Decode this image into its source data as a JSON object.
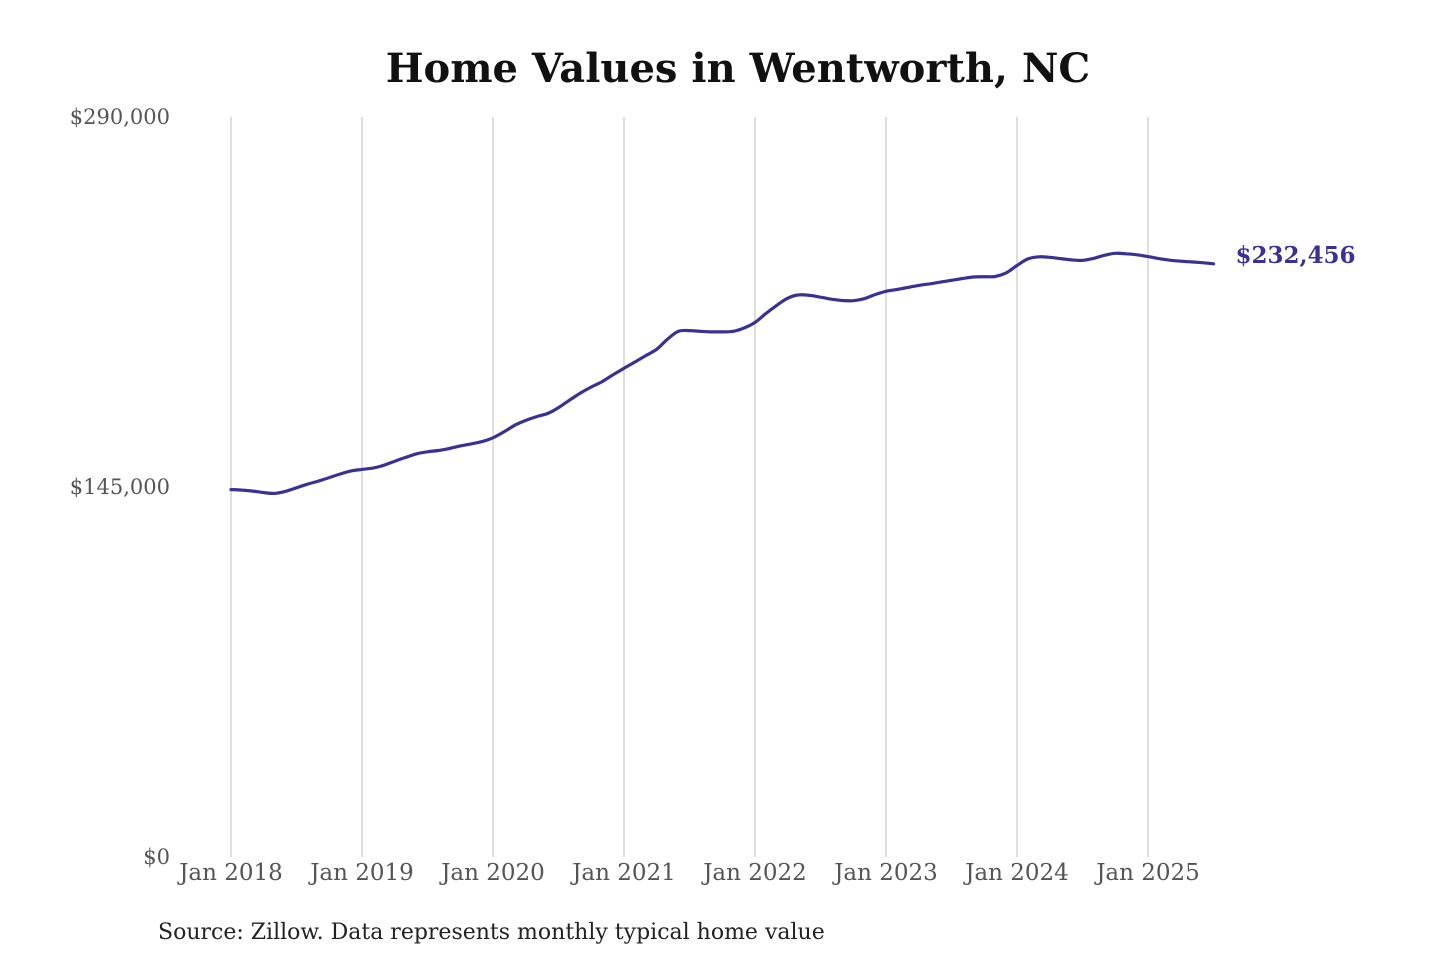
{
  "chart_data": {
    "type": "line",
    "title": "Home Values in Wentworth, NC",
    "source": "Source: Zillow. Data represents monthly typical home value",
    "ylim": [
      0,
      290000
    ],
    "yticks": [
      {
        "value": 0,
        "label": "$0"
      },
      {
        "value": 145000,
        "label": "$145,000"
      },
      {
        "value": 290000,
        "label": "$290,000"
      }
    ],
    "xticks": [
      {
        "value": "2018-01",
        "label": "Jan 2018"
      },
      {
        "value": "2019-01",
        "label": "Jan 2019"
      },
      {
        "value": "2020-01",
        "label": "Jan 2020"
      },
      {
        "value": "2021-01",
        "label": "Jan 2021"
      },
      {
        "value": "2022-01",
        "label": "Jan 2022"
      },
      {
        "value": "2023-01",
        "label": "Jan 2023"
      },
      {
        "value": "2024-01",
        "label": "Jan 2024"
      },
      {
        "value": "2025-01",
        "label": "Jan 2025"
      }
    ],
    "grid": "vertical",
    "line_color": "#3a3194",
    "end_label": "$232,456",
    "series": [
      {
        "points": [
          [
            "2018-01",
            144000
          ],
          [
            "2018-02",
            143800
          ],
          [
            "2018-03",
            143400
          ],
          [
            "2018-04",
            142800
          ],
          [
            "2018-05",
            142500
          ],
          [
            "2018-06",
            143300
          ],
          [
            "2018-07",
            144700
          ],
          [
            "2018-08",
            146100
          ],
          [
            "2018-09",
            147300
          ],
          [
            "2018-10",
            148700
          ],
          [
            "2018-11",
            150100
          ],
          [
            "2018-12",
            151300
          ],
          [
            "2019-01",
            151900
          ],
          [
            "2019-02",
            152400
          ],
          [
            "2019-03",
            153500
          ],
          [
            "2019-04",
            155100
          ],
          [
            "2019-05",
            156600
          ],
          [
            "2019-06",
            158000
          ],
          [
            "2019-07",
            158800
          ],
          [
            "2019-08",
            159300
          ],
          [
            "2019-09",
            160100
          ],
          [
            "2019-10",
            161100
          ],
          [
            "2019-11",
            161900
          ],
          [
            "2019-12",
            162800
          ],
          [
            "2020-01",
            164300
          ],
          [
            "2020-02",
            166600
          ],
          [
            "2020-03",
            169200
          ],
          [
            "2020-04",
            171100
          ],
          [
            "2020-05",
            172600
          ],
          [
            "2020-06",
            173800
          ],
          [
            "2020-07",
            176100
          ],
          [
            "2020-08",
            179000
          ],
          [
            "2020-09",
            181800
          ],
          [
            "2020-10",
            184200
          ],
          [
            "2020-11",
            186300
          ],
          [
            "2020-12",
            189000
          ],
          [
            "2021-01",
            191500
          ],
          [
            "2021-02",
            194000
          ],
          [
            "2021-03",
            196500
          ],
          [
            "2021-04",
            199000
          ],
          [
            "2021-05",
            203000
          ],
          [
            "2021-06",
            206000
          ],
          [
            "2021-07",
            206300
          ],
          [
            "2021-08",
            206000
          ],
          [
            "2021-09",
            205800
          ],
          [
            "2021-10",
            205800
          ],
          [
            "2021-11",
            206000
          ],
          [
            "2021-12",
            207300
          ],
          [
            "2022-01",
            209500
          ],
          [
            "2022-02",
            213000
          ],
          [
            "2022-03",
            216200
          ],
          [
            "2022-04",
            219000
          ],
          [
            "2022-05",
            220300
          ],
          [
            "2022-06",
            220100
          ],
          [
            "2022-07",
            219400
          ],
          [
            "2022-08",
            218600
          ],
          [
            "2022-09",
            218100
          ],
          [
            "2022-10",
            218000
          ],
          [
            "2022-11",
            218800
          ],
          [
            "2022-12",
            220400
          ],
          [
            "2023-01",
            221700
          ],
          [
            "2023-02",
            222400
          ],
          [
            "2023-03",
            223200
          ],
          [
            "2023-04",
            224000
          ],
          [
            "2023-05",
            224600
          ],
          [
            "2023-06",
            225300
          ],
          [
            "2023-07",
            226000
          ],
          [
            "2023-08",
            226700
          ],
          [
            "2023-09",
            227300
          ],
          [
            "2023-10",
            227400
          ],
          [
            "2023-11",
            227500
          ],
          [
            "2023-12",
            228900
          ],
          [
            "2024-01",
            231800
          ],
          [
            "2024-02",
            234400
          ],
          [
            "2024-03",
            235200
          ],
          [
            "2024-04",
            235000
          ],
          [
            "2024-05",
            234500
          ],
          [
            "2024-06",
            234000
          ],
          [
            "2024-07",
            233800
          ],
          [
            "2024-08",
            234600
          ],
          [
            "2024-09",
            235800
          ],
          [
            "2024-10",
            236600
          ],
          [
            "2024-11",
            236400
          ],
          [
            "2024-12",
            236000
          ],
          [
            "2025-01",
            235300
          ],
          [
            "2025-02",
            234500
          ],
          [
            "2025-03",
            233900
          ],
          [
            "2025-04",
            233500
          ],
          [
            "2025-05",
            233200
          ],
          [
            "2025-06",
            232900
          ],
          [
            "2025-07",
            232456
          ]
        ]
      }
    ]
  }
}
